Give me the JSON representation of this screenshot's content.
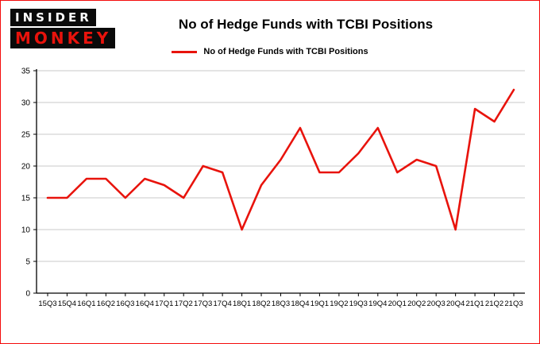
{
  "header": {
    "logo": {
      "line1": "INSIDER",
      "line2": "MONKEY"
    },
    "title": "No of Hedge Funds with TCBI Positions"
  },
  "legend": {
    "label": "No of Hedge Funds with TCBI Positions"
  },
  "colors": {
    "line": "#e8130c",
    "border": "#f40b0b",
    "grid": "#c9c9c9",
    "axis": "#000000",
    "logo_bg": "#0a0a0a",
    "logo_monkey_text": "#e8130c",
    "logo_insider_text": "#ffffff"
  },
  "chart_data": {
    "type": "line",
    "title": "No of Hedge Funds with TCBI Positions",
    "legend_entries": [
      "No of Hedge Funds with TCBI Positions"
    ],
    "legend_position": "top-center",
    "grid": "horizontal",
    "xlabel": "",
    "ylabel": "",
    "ylim": [
      0,
      35
    ],
    "yticks": [
      0,
      5,
      10,
      15,
      20,
      25,
      30,
      35
    ],
    "line_color": "#e8130c",
    "categories": [
      "15Q3",
      "15Q4",
      "16Q1",
      "16Q2",
      "16Q3",
      "16Q4",
      "17Q1",
      "17Q2",
      "17Q3",
      "17Q4",
      "18Q1",
      "18Q2",
      "18Q3",
      "18Q4",
      "19Q1",
      "19Q2",
      "19Q3",
      "19Q4",
      "20Q1",
      "20Q2",
      "20Q3",
      "20Q4",
      "21Q1",
      "21Q2",
      "21Q3"
    ],
    "values": [
      15,
      15,
      18,
      18,
      15,
      18,
      17,
      15,
      20,
      19,
      10,
      17,
      21,
      26,
      19,
      19,
      22,
      26,
      19,
      21,
      20,
      10,
      29,
      27,
      32
    ]
  }
}
